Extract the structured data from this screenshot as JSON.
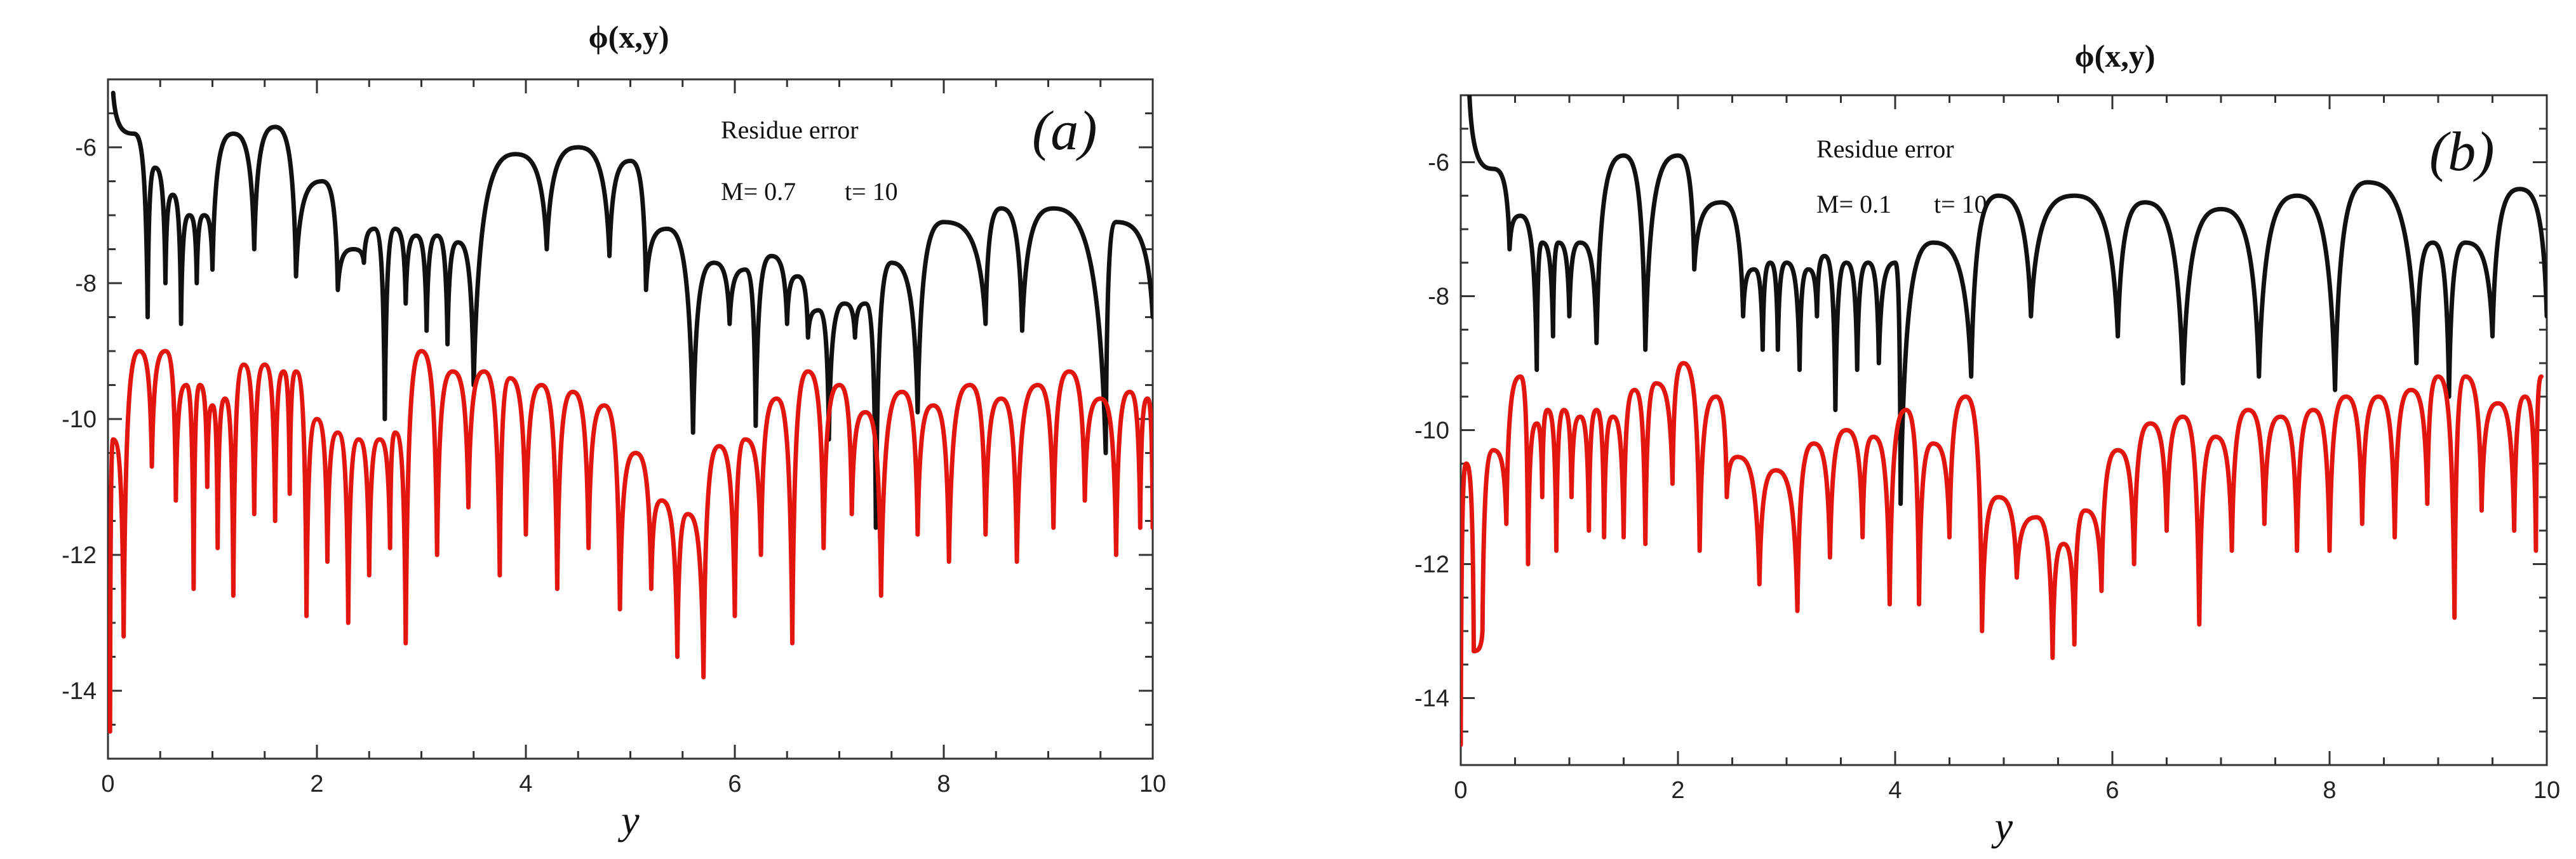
{
  "chart_data": [
    {
      "type": "line",
      "panel_label": "(a)",
      "title": "ϕ(x,y)",
      "xlabel": "y",
      "ylabel": "",
      "xlim": [
        0,
        10
      ],
      "ylim": [
        -15,
        -5
      ],
      "xticks": [
        0,
        2,
        4,
        6,
        8,
        10
      ],
      "yticks": [
        -6,
        -8,
        -10,
        -12,
        -14
      ],
      "annotation": {
        "line1": "Residue error",
        "m_text": "M=  0.7",
        "t_text": "t= 10"
      },
      "series": [
        {
          "name": "upper",
          "color": "#111111",
          "peak_x": [
            0.05,
            0.25,
            0.45,
            0.62,
            0.78,
            0.92,
            1.2,
            1.6,
            2.05,
            2.35,
            2.55,
            2.75,
            2.95,
            3.15,
            3.35,
            3.9,
            4.5,
            5.0,
            5.35,
            5.8,
            6.1,
            6.35,
            6.6,
            6.8,
            7.05,
            7.25,
            7.5,
            8.0,
            8.55,
            9.05,
            9.65
          ],
          "peak_y": [
            -5.2,
            -5.8,
            -6.3,
            -6.7,
            -7.0,
            -7.0,
            -5.8,
            -5.7,
            -6.5,
            -7.5,
            -7.2,
            -7.2,
            -7.3,
            -7.3,
            -7.4,
            -6.1,
            -6.0,
            -6.2,
            -7.2,
            -7.7,
            -7.8,
            -7.6,
            -7.9,
            -8.4,
            -8.3,
            -8.3,
            -7.7,
            -7.1,
            -6.9,
            -6.9,
            -7.1
          ],
          "dip_x": [
            0.38,
            0.55,
            0.7,
            0.85,
            1.0,
            1.4,
            1.8,
            2.2,
            2.45,
            2.65,
            2.85,
            3.05,
            3.25,
            3.5,
            4.2,
            4.8,
            5.15,
            5.6,
            5.95,
            6.2,
            6.5,
            6.7,
            6.9,
            7.15,
            7.35,
            7.75,
            8.4,
            8.75,
            9.55,
            10.0
          ],
          "dip_y": [
            -8.5,
            -8.0,
            -8.6,
            -8.0,
            -7.8,
            -7.5,
            -7.9,
            -8.1,
            -7.7,
            -10.0,
            -8.3,
            -8.7,
            -8.9,
            -9.5,
            -7.5,
            -7.6,
            -8.1,
            -10.2,
            -8.6,
            -10.1,
            -8.6,
            -8.8,
            -10.3,
            -8.8,
            -11.6,
            -9.9,
            -8.6,
            -8.7,
            -10.5,
            -8.5
          ]
        },
        {
          "name": "lower",
          "color": "#e3150f",
          "peak_x": [
            0.05,
            0.3,
            0.55,
            0.75,
            0.88,
            1.0,
            1.12,
            1.3,
            1.5,
            1.68,
            1.8,
            2.0,
            2.2,
            2.4,
            2.6,
            2.75,
            3.0,
            3.3,
            3.6,
            3.85,
            4.15,
            4.45,
            4.75,
            5.05,
            5.3,
            5.55,
            5.85,
            6.1,
            6.4,
            6.7,
            7.0,
            7.25,
            7.6,
            7.9,
            8.25,
            8.55,
            8.9,
            9.2,
            9.5,
            9.78,
            9.95
          ],
          "peak_y": [
            -10.3,
            -9.0,
            -9.0,
            -9.5,
            -9.5,
            -9.8,
            -9.7,
            -9.2,
            -9.2,
            -9.3,
            -9.3,
            -10.0,
            -10.2,
            -10.3,
            -10.3,
            -10.2,
            -9.0,
            -9.3,
            -9.3,
            -9.4,
            -9.5,
            -9.6,
            -9.8,
            -10.5,
            -11.2,
            -11.4,
            -10.4,
            -10.3,
            -9.7,
            -9.3,
            -9.5,
            -9.9,
            -9.6,
            -9.8,
            -9.5,
            -9.7,
            -9.5,
            -9.3,
            -9.7,
            -9.6,
            -9.7
          ],
          "dip_x": [
            0.02,
            0.15,
            0.42,
            0.65,
            0.82,
            0.95,
            1.05,
            1.2,
            1.4,
            1.6,
            1.74,
            1.9,
            2.1,
            2.3,
            2.5,
            2.7,
            2.85,
            3.15,
            3.45,
            3.75,
            4.0,
            4.3,
            4.6,
            4.9,
            5.2,
            5.45,
            5.7,
            6.0,
            6.25,
            6.55,
            6.85,
            7.12,
            7.4,
            7.75,
            8.05,
            8.4,
            8.7,
            9.05,
            9.35,
            9.65,
            9.88,
            10.0
          ],
          "dip_y": [
            -14.6,
            -13.2,
            -10.7,
            -11.2,
            -12.5,
            -11.0,
            -11.9,
            -12.6,
            -11.4,
            -11.5,
            -11.1,
            -12.9,
            -12.1,
            -13.0,
            -12.3,
            -11.9,
            -13.3,
            -12.0,
            -11.3,
            -12.3,
            -11.7,
            -12.5,
            -11.9,
            -12.8,
            -12.5,
            -13.5,
            -13.8,
            -12.9,
            -12.0,
            -13.3,
            -11.9,
            -11.4,
            -12.6,
            -11.7,
            -12.1,
            -11.7,
            -12.1,
            -11.6,
            -11.2,
            -12.0,
            -11.6,
            -11.6
          ]
        }
      ]
    },
    {
      "type": "line",
      "panel_label": "(b)",
      "title": "ϕ(x,y)",
      "xlabel": "y",
      "ylabel": "",
      "xlim": [
        0,
        10
      ],
      "ylim": [
        -15,
        -5
      ],
      "xticks": [
        0,
        2,
        4,
        6,
        8,
        10
      ],
      "yticks": [
        -6,
        -8,
        -10,
        -12,
        -14
      ],
      "annotation": {
        "line1": "Residue error",
        "m_text": "M= 0.1",
        "t_text": "t= 10"
      },
      "series": [
        {
          "name": "upper",
          "color": "#111111",
          "peak_x": [
            0.08,
            0.3,
            0.55,
            0.75,
            0.9,
            1.1,
            1.5,
            2.0,
            2.4,
            2.7,
            2.85,
            3.0,
            3.2,
            3.35,
            3.55,
            3.75,
            4.0,
            4.35,
            4.95,
            5.65,
            6.3,
            7.0,
            7.7,
            8.35,
            8.95,
            9.25,
            9.75
          ],
          "peak_y": [
            -5.0,
            -6.1,
            -6.8,
            -7.2,
            -7.2,
            -7.2,
            -5.9,
            -5.9,
            -6.6,
            -7.6,
            -7.5,
            -7.5,
            -7.6,
            -7.4,
            -7.5,
            -7.5,
            -7.5,
            -7.2,
            -6.5,
            -6.5,
            -6.6,
            -6.7,
            -6.5,
            -6.3,
            -7.2,
            -7.2,
            -6.4
          ],
          "dip_x": [
            0.45,
            0.7,
            0.85,
            1.0,
            1.25,
            1.7,
            2.15,
            2.6,
            2.78,
            2.92,
            3.12,
            3.28,
            3.45,
            3.65,
            3.85,
            4.05,
            4.7,
            5.25,
            6.05,
            6.65,
            7.35,
            8.05,
            8.8,
            9.1,
            9.5,
            10.0
          ],
          "dip_y": [
            -7.3,
            -9.1,
            -8.6,
            -8.3,
            -8.7,
            -8.8,
            -7.6,
            -8.3,
            -8.8,
            -8.8,
            -9.1,
            -8.3,
            -9.7,
            -9.1,
            -9.0,
            -11.1,
            -9.2,
            -8.3,
            -8.6,
            -9.3,
            -9.2,
            -9.4,
            -9.0,
            -9.5,
            -8.6,
            -8.3
          ]
        },
        {
          "name": "lower",
          "color": "#e3150f",
          "peak_x": [
            0.05,
            0.3,
            0.55,
            0.7,
            0.8,
            0.95,
            1.1,
            1.25,
            1.4,
            1.6,
            1.8,
            2.05,
            2.35,
            2.55,
            2.9,
            3.25,
            3.55,
            3.8,
            4.1,
            4.35,
            4.65,
            4.95,
            5.3,
            5.55,
            5.75,
            6.05,
            6.35,
            6.65,
            6.95,
            7.25,
            7.55,
            7.85,
            8.15,
            8.45,
            8.75,
            9.0,
            9.25,
            9.55,
            9.8,
            9.95
          ],
          "peak_y": [
            -10.5,
            -10.3,
            -9.2,
            -9.9,
            -9.7,
            -9.7,
            -9.8,
            -9.7,
            -9.8,
            -9.4,
            -9.3,
            -9.0,
            -9.5,
            -10.4,
            -10.6,
            -10.2,
            -10.0,
            -10.1,
            -9.7,
            -10.2,
            -9.5,
            -11.0,
            -11.3,
            -11.7,
            -11.2,
            -10.3,
            -9.9,
            -9.8,
            -10.1,
            -9.7,
            -9.8,
            -9.7,
            -9.5,
            -9.5,
            -9.4,
            -9.2,
            -9.2,
            -9.6,
            -9.5,
            -9.2
          ],
          "dip_x": [
            0.0,
            0.12,
            0.2,
            0.42,
            0.62,
            0.75,
            0.88,
            1.02,
            1.18,
            1.32,
            1.5,
            1.7,
            1.95,
            2.2,
            2.45,
            2.75,
            3.1,
            3.4,
            3.7,
            3.95,
            4.22,
            4.5,
            4.8,
            5.12,
            5.45,
            5.65,
            5.9,
            6.2,
            6.5,
            6.8,
            7.1,
            7.4,
            7.7,
            8.0,
            8.3,
            8.6,
            8.9,
            9.15,
            9.4,
            9.7,
            9.9
          ],
          "dip_y": [
            -14.7,
            -13.3,
            -13.0,
            -11.4,
            -12.0,
            -11.0,
            -11.8,
            -11.0,
            -11.5,
            -11.6,
            -11.6,
            -11.7,
            -10.8,
            -11.8,
            -11.0,
            -12.3,
            -12.7,
            -11.9,
            -11.6,
            -12.6,
            -12.6,
            -11.6,
            -13.0,
            -12.2,
            -13.4,
            -13.2,
            -12.4,
            -12.0,
            -11.5,
            -12.9,
            -11.8,
            -11.4,
            -11.8,
            -11.8,
            -11.4,
            -11.6,
            -11.1,
            -12.8,
            -11.2,
            -11.5,
            -11.8
          ]
        }
      ]
    }
  ]
}
